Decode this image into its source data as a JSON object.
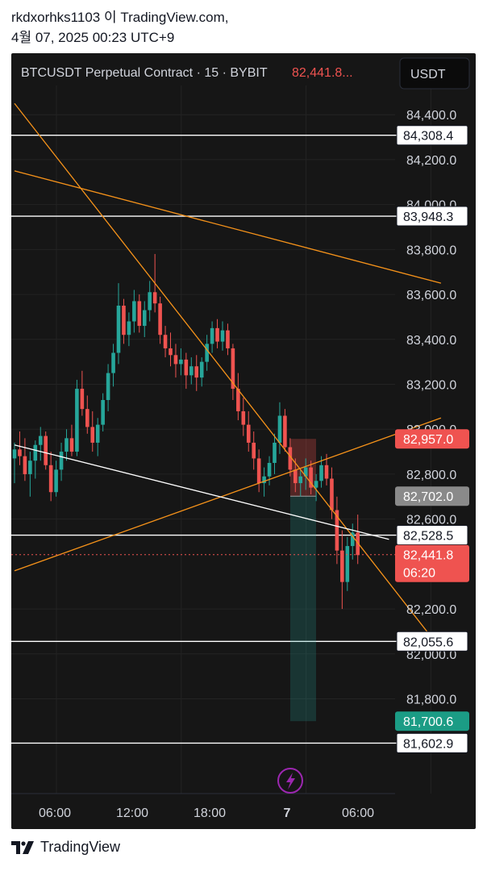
{
  "header": {
    "author_line": "rkdxorhks1103 이 TradingView.com,",
    "timestamp_line": "4월 07, 2025 00:23 UTC+9"
  },
  "chart_toolbar": {
    "symbol": "BTCUSDT Perpetual Contract · 15 · BYBIT",
    "last_price": "82,441.8...",
    "currency_button": "USDT"
  },
  "colors": {
    "up": "#26a69a",
    "down": "#ef5350",
    "trendline": "#f7931a",
    "level_line": "#ffffff",
    "background": "#161616"
  },
  "chart_data": {
    "type": "candlestick",
    "title": "BTCUSDT Perpetual Contract · 15 · BYBIT",
    "ylim": [
      81450,
      84530
    ],
    "y_ticks": [
      "84,400.0",
      "84,200.0",
      "84,000.0",
      "83,800.0",
      "83,600.0",
      "83,400.0",
      "83,200.0",
      "83,000.0",
      "82,800.0",
      "82,600.0",
      "82,200.0",
      "82,000.0",
      "81,800.0"
    ],
    "y_tick_values": [
      84400,
      84200,
      84000,
      83800,
      83600,
      83400,
      83200,
      83000,
      82800,
      82600,
      82200,
      82000,
      81800
    ],
    "x_ticks": [
      "06:00",
      "12:00",
      "18:00",
      "7",
      "06:00"
    ],
    "horizontal_levels": [
      {
        "label": "84,308.4",
        "value": 84308.4
      },
      {
        "label": "83,948.3",
        "value": 83948.3
      },
      {
        "label": "82,528.5",
        "value": 82528.5
      },
      {
        "label": "82,055.6",
        "value": 82055.6
      },
      {
        "label": "81,602.9",
        "value": 81602.9
      }
    ],
    "price_tags": [
      {
        "label": "82,957.0",
        "value": 82957.0,
        "kind": "stop"
      },
      {
        "label": "82,702.0",
        "value": 82702.0,
        "kind": "entry"
      },
      {
        "label": "82,441.8",
        "value": 82441.8,
        "kind": "last",
        "countdown": "06:20"
      },
      {
        "label": "81,700.6",
        "value": 81700.6,
        "kind": "target"
      }
    ],
    "position": {
      "entry": 82702.0,
      "stop": 82957.0,
      "target": 81700.6
    },
    "last_price": 82441.8,
    "candles": [
      [
        82870,
        82940,
        82760,
        82910
      ],
      [
        82910,
        82990,
        82840,
        82880
      ],
      [
        82880,
        82960,
        82770,
        82800
      ],
      [
        82800,
        82900,
        82700,
        82860
      ],
      [
        82860,
        82950,
        82780,
        82930
      ],
      [
        82930,
        83010,
        82860,
        82970
      ],
      [
        82970,
        82990,
        82820,
        82840
      ],
      [
        82840,
        82900,
        82680,
        82720
      ],
      [
        82720,
        82860,
        82700,
        82820
      ],
      [
        82820,
        82940,
        82770,
        82900
      ],
      [
        82900,
        83000,
        82860,
        82960
      ],
      [
        82960,
        83020,
        82880,
        82900
      ],
      [
        82900,
        83220,
        82880,
        83180
      ],
      [
        83180,
        83260,
        83060,
        83090
      ],
      [
        83090,
        83150,
        82980,
        83010
      ],
      [
        83010,
        83080,
        82900,
        82940
      ],
      [
        82940,
        83050,
        82880,
        83020
      ],
      [
        83020,
        83160,
        82990,
        83130
      ],
      [
        83130,
        83290,
        83080,
        83250
      ],
      [
        83250,
        83380,
        83190,
        83340
      ],
      [
        83340,
        83650,
        83290,
        83550
      ],
      [
        83550,
        83580,
        83380,
        83420
      ],
      [
        83420,
        83520,
        83370,
        83480
      ],
      [
        83480,
        83620,
        83430,
        83570
      ],
      [
        83570,
        83600,
        83430,
        83460
      ],
      [
        83460,
        83570,
        83410,
        83530
      ],
      [
        83530,
        83660,
        83480,
        83610
      ],
      [
        83610,
        83780,
        83520,
        83560
      ],
      [
        83560,
        83590,
        83380,
        83420
      ],
      [
        83420,
        83460,
        83320,
        83360
      ],
      [
        83360,
        83430,
        83280,
        83330
      ],
      [
        83330,
        83380,
        83230,
        83290
      ],
      [
        83290,
        83360,
        83240,
        83310
      ],
      [
        83310,
        83340,
        83180,
        83240
      ],
      [
        83240,
        83320,
        83200,
        83280
      ],
      [
        83280,
        83330,
        83170,
        83230
      ],
      [
        83230,
        83320,
        83190,
        83300
      ],
      [
        83300,
        83420,
        83260,
        83380
      ],
      [
        83380,
        83480,
        83340,
        83450
      ],
      [
        83450,
        83490,
        83360,
        83390
      ],
      [
        83390,
        83480,
        83350,
        83440
      ],
      [
        83440,
        83470,
        83330,
        83360
      ],
      [
        83360,
        83380,
        83130,
        83180
      ],
      [
        83180,
        83250,
        83040,
        83080
      ],
      [
        83080,
        83140,
        82970,
        83020
      ],
      [
        83020,
        83080,
        82900,
        82940
      ],
      [
        82940,
        82990,
        82820,
        82870
      ],
      [
        82870,
        82910,
        82720,
        82760
      ],
      [
        82760,
        82830,
        82700,
        82790
      ],
      [
        82790,
        82880,
        82750,
        82850
      ],
      [
        82850,
        82980,
        82800,
        82940
      ],
      [
        82940,
        83120,
        82890,
        83060
      ],
      [
        83060,
        83090,
        82900,
        82920
      ],
      [
        82920,
        82960,
        82790,
        82820
      ],
      [
        82820,
        82870,
        82720,
        82760
      ],
      [
        82760,
        82820,
        82700,
        82790
      ],
      [
        82790,
        82870,
        82730,
        82830
      ],
      [
        82830,
        82860,
        82710,
        82740
      ],
      [
        82740,
        82800,
        82680,
        82770
      ],
      [
        82770,
        82880,
        82740,
        82840
      ],
      [
        82840,
        82890,
        82750,
        82780
      ],
      [
        82780,
        82830,
        82600,
        82640
      ],
      [
        82640,
        82700,
        82400,
        82460
      ],
      [
        82460,
        82550,
        82200,
        82320
      ],
      [
        82320,
        82520,
        82280,
        82480
      ],
      [
        82480,
        82580,
        82420,
        82540
      ],
      [
        82540,
        82620,
        82400,
        82440
      ]
    ],
    "trendlines": [
      {
        "from": [
          0,
          84450
        ],
        "to": [
          82,
          82020
        ],
        "color": "orange"
      },
      {
        "from": [
          0,
          84150
        ],
        "to": [
          82,
          83650
        ],
        "color": "orange"
      },
      {
        "from": [
          0,
          82370
        ],
        "to": [
          82,
          83050
        ],
        "color": "orange"
      },
      {
        "from": [
          0,
          82930
        ],
        "to": [
          72,
          82510
        ],
        "color": "white"
      }
    ]
  }
}
